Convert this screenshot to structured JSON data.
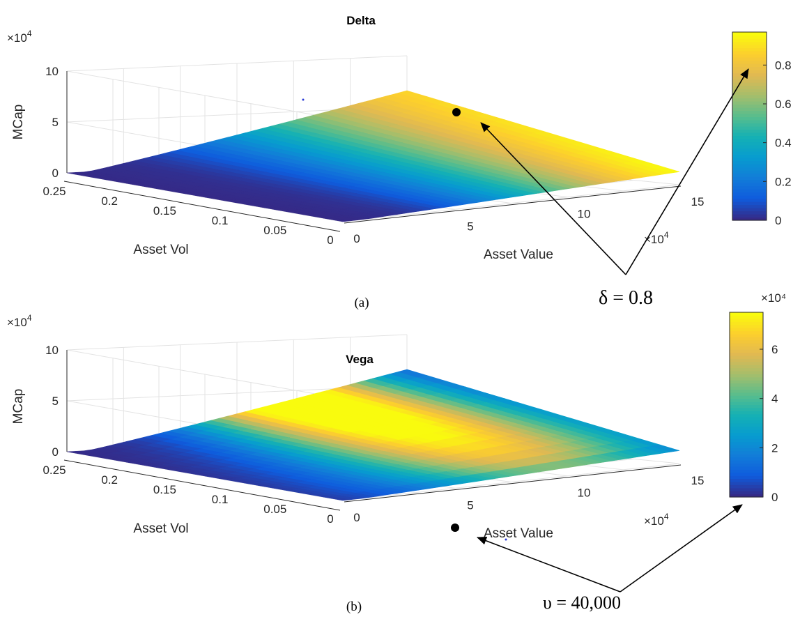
{
  "panels": [
    {
      "caption": "(a)",
      "annotation": "δ = 0.8",
      "colorbar_exponent": "",
      "chart_data": {
        "type": "surface",
        "title": "Delta",
        "xlabel": "Asset Value",
        "ylabel": "Asset Vol",
        "zlabel": "MCap",
        "x_multiplier": "×10^4",
        "z_multiplier": "×10^4",
        "xlim": [
          0,
          150000
        ],
        "ylim": [
          0,
          0.25
        ],
        "zlim": [
          0,
          100000
        ],
        "x_ticks": [
          "0",
          "5",
          "10",
          "15"
        ],
        "y_ticks": [
          "0.25",
          "0.2",
          "0.15",
          "0.1",
          "0.05",
          "0"
        ],
        "z_ticks": [
          "0",
          "5",
          "10"
        ],
        "colorbar": {
          "range": [
            0,
            0.97
          ],
          "ticks": [
            "0",
            "0.2",
            "0.4",
            "0.6",
            "0.8"
          ]
        },
        "marked_point": {
          "asset_value": 110000,
          "asset_vol": 0.2,
          "mcap": 57000,
          "value": 0.8
        }
      }
    },
    {
      "caption": "(b)",
      "annotation": "υ = 40,000",
      "colorbar_exponent": "×10⁴",
      "chart_data": {
        "type": "surface",
        "title": "Vega",
        "xlabel": "Asset Value",
        "ylabel": "Asset Vol",
        "zlabel": "MCap",
        "x_multiplier": "×10^4",
        "z_multiplier": "×10^4",
        "xlim": [
          0,
          150000
        ],
        "ylim": [
          0,
          0.25
        ],
        "zlim": [
          0,
          100000
        ],
        "x_ticks": [
          "0",
          "5",
          "10",
          "15"
        ],
        "y_ticks": [
          "0.25",
          "0.2",
          "0.15",
          "0.1",
          "0.05",
          "0"
        ],
        "z_ticks": [
          "0",
          "5",
          "10"
        ],
        "colorbar": {
          "range": [
            0,
            75000
          ],
          "ticks": [
            "0",
            "2",
            "4",
            "6"
          ]
        },
        "marked_point": {
          "asset_value": 110000,
          "asset_vol": 0.2,
          "mcap": 57000,
          "value": 40000
        }
      }
    }
  ]
}
